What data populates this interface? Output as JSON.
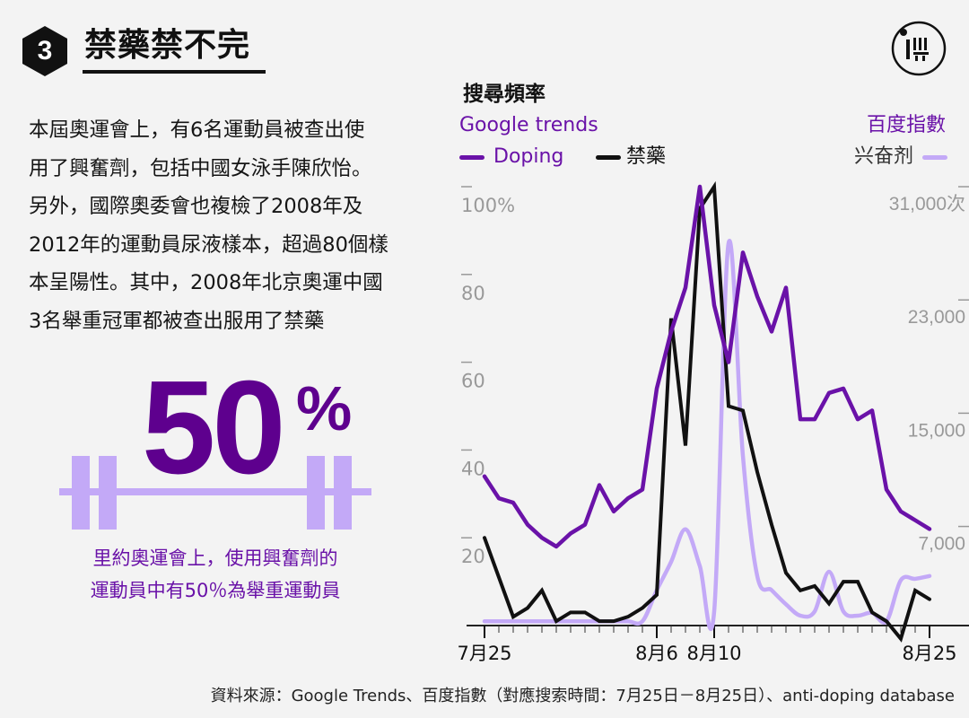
{
  "header": {
    "number": "3",
    "title": "禁藥禁不完"
  },
  "paragraph": {
    "lines": [
      "本屆奧運會上，有6名運動員被查出使",
      "用了興奮劑，包括中國女泳手陳欣怡。",
      "另外，國際奧委會也複檢了2008年及",
      "2012年的運動員尿液樣本，超過80個樣",
      "本呈陽性。其中，2008年北京奧運中國",
      "3名舉重冠軍都被查出服用了禁藥"
    ]
  },
  "highlight": {
    "value": "50",
    "unit": "%",
    "caption_lines": [
      "里約奧運會上，使用興奮劑的",
      "運動員中有50％為舉重運動員"
    ]
  },
  "colors": {
    "accent": "#5e008e",
    "doping": "#6a12a8",
    "jinyao": "#111111",
    "baidu": "#c3a9f7"
  },
  "chart_data": {
    "type": "line",
    "title": "搜尋頻率",
    "left_axis": {
      "label": "Google trends",
      "ticks": [
        "100%",
        "80",
        "60",
        "40",
        "20"
      ],
      "ylim": [
        0,
        100
      ]
    },
    "right_axis": {
      "label": "百度指數",
      "ticks": [
        "31,000次",
        "23,000",
        "15,000",
        "7,000"
      ],
      "ylim": [
        0,
        31000
      ]
    },
    "x_ticks": [
      "7月25",
      "8月6",
      "8月10",
      "8月25"
    ],
    "x_tick_days": [
      0,
      12,
      16,
      31
    ],
    "series": [
      {
        "name": "Doping",
        "axis": "left",
        "x": [
          0,
          1,
          2,
          3,
          4,
          5,
          6,
          7,
          8,
          9,
          10,
          11,
          12,
          13,
          14,
          15,
          16,
          17,
          18,
          19,
          20,
          21,
          22,
          23,
          24,
          25,
          26,
          27,
          28,
          29,
          30,
          31
        ],
        "values": [
          34,
          29,
          28,
          23,
          20,
          18,
          21,
          23,
          32,
          26,
          29,
          31,
          54,
          67,
          77,
          100,
          73,
          60,
          85,
          75,
          67,
          77,
          47,
          47,
          53,
          54,
          47,
          49,
          31,
          26,
          24,
          22
        ]
      },
      {
        "name": "禁藥",
        "axis": "left",
        "x": [
          0,
          1,
          2,
          3,
          4,
          5,
          6,
          7,
          8,
          9,
          10,
          11,
          12,
          13,
          14,
          15,
          16,
          17,
          18,
          19,
          20,
          21,
          22,
          23,
          24,
          25,
          26,
          27,
          28,
          29,
          30,
          31
        ],
        "values": [
          20,
          11,
          2,
          4,
          8,
          1,
          3,
          3,
          1,
          1,
          2,
          4,
          7,
          70,
          41,
          95,
          100,
          50,
          49,
          35,
          23,
          12,
          8,
          9,
          5,
          10,
          10,
          3,
          1,
          -3,
          8,
          6
        ]
      },
      {
        "name": "兴奋剂",
        "axis": "right",
        "x": [
          0,
          1,
          2,
          3,
          4,
          5,
          6,
          7,
          8,
          9,
          10,
          11,
          12,
          13,
          14,
          15,
          16,
          17,
          18,
          19,
          20,
          21,
          22,
          23,
          24,
          25,
          26,
          27,
          28,
          29,
          30,
          31
        ],
        "values": [
          300,
          300,
          300,
          300,
          300,
          300,
          300,
          300,
          300,
          300,
          300,
          300,
          2500,
          4500,
          6800,
          4200,
          1000,
          27000,
          12000,
          3500,
          2500,
          1500,
          700,
          1000,
          3800,
          1000,
          700,
          900,
          300,
          3200,
          3300,
          3500
        ]
      }
    ],
    "grid": false,
    "legend": "top"
  },
  "source": "資料來源：Google Trends、百度指數（對應搜索時間：7月25日－8月25日）、anti-doping database"
}
